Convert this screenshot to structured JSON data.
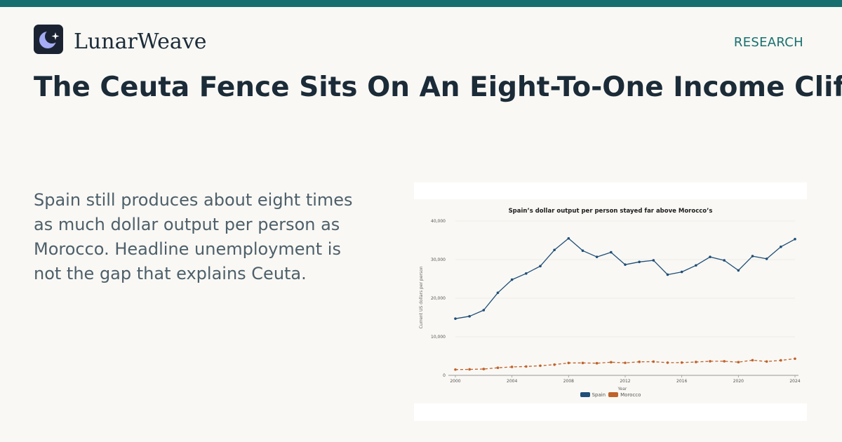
{
  "brand": {
    "name": "LunarWeave",
    "logo_icon": "crescent-moon-star-icon",
    "accent": "#17706f"
  },
  "nav": {
    "section_label": "RESEARCH"
  },
  "article": {
    "headline": "The Ceuta Fence Sits On An Eight-To-One Income Cliff",
    "deck": "Spain still produces about eight times as much dollar output per person as Morocco. Headline unemployment is not the gap that explains Ceuta."
  },
  "chart_data": {
    "type": "line",
    "title": "Spain’s dollar output per person stayed far above Morocco’s",
    "xlabel": "Year",
    "ylabel": "Current US dollars per person",
    "x": [
      2000,
      2001,
      2002,
      2003,
      2004,
      2005,
      2006,
      2007,
      2008,
      2009,
      2010,
      2011,
      2012,
      2013,
      2014,
      2015,
      2016,
      2017,
      2018,
      2019,
      2020,
      2021,
      2022,
      2023,
      2024
    ],
    "x_ticks": [
      "2000",
      "2004",
      "2008",
      "2012",
      "2016",
      "2020",
      "2024"
    ],
    "y_ticks": [
      "0",
      "10,000",
      "20,000",
      "30,000",
      "40,000"
    ],
    "xlim": [
      2000,
      2024
    ],
    "ylim": [
      0,
      40000
    ],
    "grid": true,
    "legend_position": "bottom",
    "series": [
      {
        "name": "Spain",
        "color": "#1f4e79",
        "style": "solid",
        "values": [
          14700,
          15300,
          16900,
          21400,
          24800,
          26400,
          28300,
          32500,
          35500,
          32300,
          30700,
          31900,
          28700,
          29400,
          29800,
          26100,
          26800,
          28500,
          30700,
          29800,
          27200,
          30900,
          30200,
          33300,
          35300
        ]
      },
      {
        "name": "Morocco",
        "color": "#c0622c",
        "style": "dashed",
        "values": [
          1500,
          1550,
          1640,
          1960,
          2190,
          2290,
          2490,
          2780,
          3220,
          3210,
          3140,
          3400,
          3240,
          3510,
          3550,
          3290,
          3310,
          3460,
          3650,
          3650,
          3420,
          3920,
          3580,
          3890,
          4310
        ]
      }
    ]
  }
}
